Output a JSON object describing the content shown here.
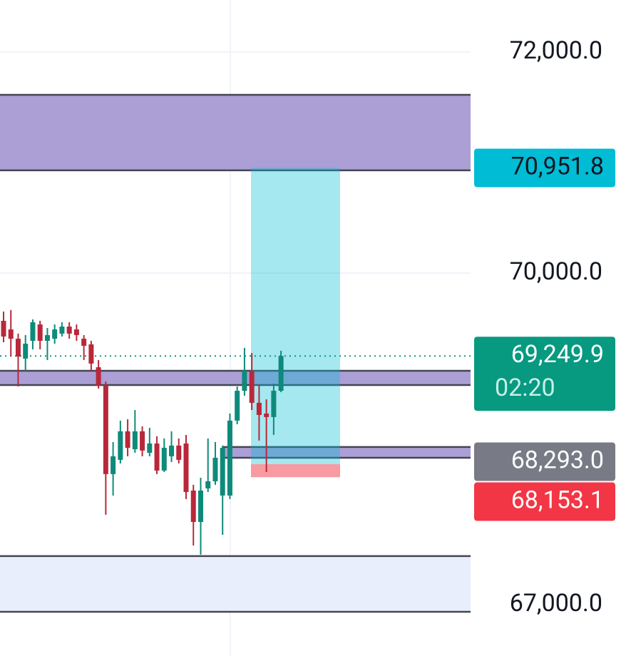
{
  "chart_data": {
    "type": "candlestick",
    "ylim": [
      66535,
      72471
    ],
    "yticks": [
      {
        "value": 72000,
        "label": "72,000.0"
      },
      {
        "value": 70000,
        "label": "70,000.0"
      },
      {
        "value": 67000,
        "label": "67,000.0"
      }
    ],
    "grid": true,
    "up_color": "#0e8a7a",
    "down_color": "#b8283a",
    "open": [
      69568,
      69490,
      69406,
      69226,
      69387,
      69535,
      69387,
      69406,
      69452,
      69516,
      69490,
      69406,
      69355,
      69148,
      68987,
      68181,
      68310,
      68568,
      68406,
      68568,
      68374,
      68458,
      68213,
      68342,
      68439,
      68458,
      68032,
      67748,
      68052,
      68116,
      67987,
      67987,
      68665,
      68935,
      69116,
      68826,
      68729,
      68697,
      68935
    ],
    "high": [
      69652,
      69665,
      69452,
      69439,
      69581,
      69568,
      69503,
      69535,
      69555,
      69555,
      69535,
      69439,
      69387,
      69213,
      69019,
      68471,
      68665,
      68677,
      68761,
      68613,
      68600,
      68523,
      68503,
      68568,
      68503,
      68535,
      68084,
      68148,
      68503,
      68471,
      68439,
      68729,
      68974,
      69323,
      69277,
      68987,
      68858,
      69000,
      69297
    ],
    "low": [
      69374,
      69245,
      68974,
      69116,
      69310,
      69310,
      69213,
      69361,
      69426,
      69406,
      69387,
      69213,
      69116,
      68955,
      67813,
      67987,
      68277,
      68342,
      68374,
      68342,
      68342,
      68181,
      68200,
      68290,
      68277,
      67955,
      67535,
      67452,
      68019,
      68084,
      67632,
      67955,
      68632,
      68890,
      68761,
      68484,
      68200,
      68535,
      68923
    ],
    "close": [
      69426,
      69406,
      69245,
      69361,
      69555,
      69387,
      69439,
      69490,
      69516,
      69452,
      69439,
      69342,
      69181,
      68987,
      68181,
      68342,
      68568,
      68419,
      68568,
      68394,
      68458,
      68213,
      68419,
      68439,
      68310,
      68019,
      67748,
      68032,
      68116,
      68329,
      68419,
      68665,
      68935,
      69116,
      68826,
      68716,
      68697,
      68935,
      69249.9
    ],
    "zones": [
      {
        "top": 71613,
        "bottom": 70930,
        "color": "#ab9fd6"
      },
      {
        "top": 69116,
        "bottom": 68987,
        "color": "#ab9fd6"
      },
      {
        "top": 68426,
        "bottom": 68329,
        "color": "#ab9fd6"
      },
      {
        "top": 67439,
        "bottom": 66935,
        "color": "#e8eefc"
      }
    ],
    "position": {
      "target": 70951.8,
      "entry": 68271,
      "stop": 68153.1
    },
    "price_line": 69249.9,
    "price_tags": [
      {
        "value": 70951.8,
        "label": "70,951.8",
        "color": "#00bcd4",
        "text_color": "#131722"
      },
      {
        "value": 69249.9,
        "label": "69,249.9",
        "countdown": "02:20",
        "color": "#089981",
        "text_color": "#ffffff"
      },
      {
        "value": 68293,
        "label": "68,293.0",
        "color": "#787b86",
        "text_color": "#ffffff"
      },
      {
        "value": 68153.1,
        "label": "68,153.1",
        "color": "#f23645",
        "text_color": "#ffffff"
      }
    ]
  }
}
